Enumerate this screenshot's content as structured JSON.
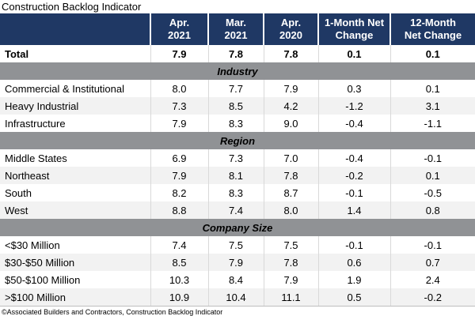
{
  "title": "Construction Backlog Indicator",
  "footer": "©Associated Builders and Contractors, Construction Backlog Indicator",
  "colors": {
    "header_bg": "#1F3864",
    "header_text": "#FFFFFF",
    "section_banner_bg": "#909295",
    "row_alt_bg": "#F2F2F2",
    "grid_line": "#D9D9D9"
  },
  "header": {
    "col0": "",
    "col1": "Apr.\n2021",
    "col2": "Mar.\n2021",
    "col3": "Apr.\n2020",
    "col4": "1-Month Net\nChange",
    "col5": "12-Month\nNet Change"
  },
  "table": {
    "total": {
      "label": "Total",
      "v0": "7.9",
      "v1": "7.8",
      "v2": "7.8",
      "v3": "0.1",
      "v4": "0.1"
    },
    "sections": [
      {
        "name": "Industry",
        "rows": [
          {
            "label": "Commercial & Institutional",
            "v0": "8.0",
            "v1": "7.7",
            "v2": "7.9",
            "v3": "0.3",
            "v4": "0.1"
          },
          {
            "label": "Heavy Industrial",
            "v0": "7.3",
            "v1": "8.5",
            "v2": "4.2",
            "v3": "-1.2",
            "v4": "3.1"
          },
          {
            "label": "Infrastructure",
            "v0": "7.9",
            "v1": "8.3",
            "v2": "9.0",
            "v3": "-0.4",
            "v4": "-1.1"
          }
        ]
      },
      {
        "name": "Region",
        "rows": [
          {
            "label": "Middle States",
            "v0": "6.9",
            "v1": "7.3",
            "v2": "7.0",
            "v3": "-0.4",
            "v4": "-0.1"
          },
          {
            "label": "Northeast",
            "v0": "7.9",
            "v1": "8.1",
            "v2": "7.8",
            "v3": "-0.2",
            "v4": "0.1"
          },
          {
            "label": "South",
            "v0": "8.2",
            "v1": "8.3",
            "v2": "8.7",
            "v3": "-0.1",
            "v4": "-0.5"
          },
          {
            "label": "West",
            "v0": "8.8",
            "v1": "7.4",
            "v2": "8.0",
            "v3": "1.4",
            "v4": "0.8"
          }
        ]
      },
      {
        "name": "Company Size",
        "rows": [
          {
            "label": "<$30 Million",
            "v0": "7.4",
            "v1": "7.5",
            "v2": "7.5",
            "v3": "-0.1",
            "v4": "-0.1"
          },
          {
            "label": "$30-$50 Million",
            "v0": "8.5",
            "v1": "7.9",
            "v2": "7.8",
            "v3": "0.6",
            "v4": "0.7"
          },
          {
            "label": "$50-$100 Million",
            "v0": "10.3",
            "v1": "8.4",
            "v2": "7.9",
            "v3": "1.9",
            "v4": "2.4"
          },
          {
            "label": ">$100 Million",
            "v0": "10.9",
            "v1": "10.4",
            "v2": "11.1",
            "v3": "0.5",
            "v4": "-0.2"
          }
        ]
      }
    ]
  },
  "chart_data": {
    "type": "table",
    "title": "Construction Backlog Indicator",
    "columns": [
      "",
      "Apr. 2021",
      "Mar. 2021",
      "Apr. 2020",
      "1-Month Net Change",
      "12-Month Net Change"
    ],
    "rows": [
      {
        "label": "Total",
        "values": [
          7.9,
          7.8,
          7.8,
          0.1,
          0.1
        ],
        "section": null,
        "bold": true
      },
      {
        "label": "Commercial & Institutional",
        "values": [
          8.0,
          7.7,
          7.9,
          0.3,
          0.1
        ],
        "section": "Industry"
      },
      {
        "label": "Heavy Industrial",
        "values": [
          7.3,
          8.5,
          4.2,
          -1.2,
          3.1
        ],
        "section": "Industry"
      },
      {
        "label": "Infrastructure",
        "values": [
          7.9,
          8.3,
          9.0,
          -0.4,
          -1.1
        ],
        "section": "Industry"
      },
      {
        "label": "Middle States",
        "values": [
          6.9,
          7.3,
          7.0,
          -0.4,
          -0.1
        ],
        "section": "Region"
      },
      {
        "label": "Northeast",
        "values": [
          7.9,
          8.1,
          7.8,
          -0.2,
          0.1
        ],
        "section": "Region"
      },
      {
        "label": "South",
        "values": [
          8.2,
          8.3,
          8.7,
          -0.1,
          -0.5
        ],
        "section": "Region"
      },
      {
        "label": "West",
        "values": [
          8.8,
          7.4,
          8.0,
          1.4,
          0.8
        ],
        "section": "Region"
      },
      {
        "label": "<$30 Million",
        "values": [
          7.4,
          7.5,
          7.5,
          -0.1,
          -0.1
        ],
        "section": "Company Size"
      },
      {
        "label": "$30-$50 Million",
        "values": [
          8.5,
          7.9,
          7.8,
          0.6,
          0.7
        ],
        "section": "Company Size"
      },
      {
        "label": "$50-$100 Million",
        "values": [
          10.3,
          8.4,
          7.9,
          1.9,
          2.4
        ],
        "section": "Company Size"
      },
      {
        "label": ">$100 Million",
        "values": [
          10.9,
          10.4,
          11.1,
          0.5,
          -0.2
        ],
        "section": "Company Size"
      }
    ],
    "source_note": "©Associated Builders and Contractors, Construction Backlog Indicator"
  }
}
